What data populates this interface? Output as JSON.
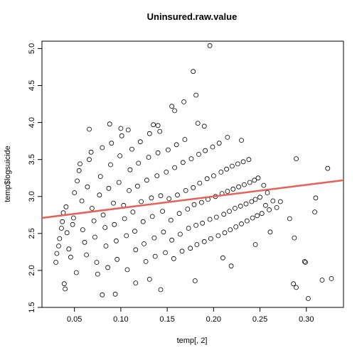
{
  "chart_data": {
    "type": "scatter",
    "title": "Uninsured.raw.value",
    "xlabel": "temp[, 2]",
    "ylabel": "temp$logsuicide",
    "xlim": [
      0.015,
      0.34
    ],
    "ylim": [
      1.5,
      5.1
    ],
    "x_ticks": [
      0.05,
      0.1,
      0.15,
      0.2,
      0.25,
      0.3
    ],
    "x_tick_labels": [
      "0.05",
      "0.10",
      "0.15",
      "0.20",
      "0.25",
      "0.30"
    ],
    "y_ticks": [
      1.5,
      2.0,
      2.5,
      3.0,
      3.5,
      4.0,
      4.5,
      5.0
    ],
    "y_tick_labels": [
      "1.5",
      "2.0",
      "2.5",
      "3.0",
      "3.5",
      "4.0",
      "4.5",
      "5.0"
    ],
    "grid": false,
    "point_style": "open-circle",
    "point_color": "#000000",
    "fit_line": {
      "color": "#e8605a",
      "x": [
        0.015,
        0.34
      ],
      "y": [
        2.71,
        3.22
      ]
    },
    "series": [
      {
        "points": [
          [
            0.196,
            5.04
          ],
          [
            0.178,
            4.69
          ],
          [
            0.181,
            4.37
          ],
          [
            0.168,
            4.28
          ],
          [
            0.155,
            4.22
          ],
          [
            0.158,
            4.16
          ],
          [
            0.14,
            3.96
          ],
          [
            0.135,
            3.97
          ],
          [
            0.183,
            3.99
          ],
          [
            0.19,
            3.95
          ],
          [
            0.066,
            3.91
          ],
          [
            0.088,
            3.98
          ],
          [
            0.1,
            3.92
          ],
          [
            0.108,
            3.9
          ],
          [
            0.215,
            3.8
          ],
          [
            0.23,
            3.76
          ],
          [
            0.289,
            3.51
          ],
          [
            0.323,
            3.38
          ],
          [
            0.31,
            2.98
          ],
          [
            0.309,
            2.79
          ],
          [
            0.282,
            2.7
          ],
          [
            0.287,
            2.44
          ],
          [
            0.261,
            2.52
          ],
          [
            0.298,
            2.12
          ],
          [
            0.299,
            2.11
          ],
          [
            0.286,
            1.82
          ],
          [
            0.289,
            1.77
          ],
          [
            0.302,
            1.62
          ],
          [
            0.317,
            1.87
          ],
          [
            0.327,
            1.89
          ],
          [
            0.245,
            2.35
          ],
          [
            0.219,
            2.06
          ],
          [
            0.21,
            2.17
          ],
          [
            0.18,
            1.86
          ],
          [
            0.143,
            1.74
          ],
          [
            0.131,
            1.88
          ],
          [
            0.116,
            1.83
          ],
          [
            0.094,
            1.68
          ],
          [
            0.08,
            1.67
          ],
          [
            0.039,
            1.82
          ],
          [
            0.04,
            1.75
          ],
          [
            0.052,
            1.97
          ],
          [
            0.03,
            2.11
          ],
          [
            0.031,
            2.23
          ],
          [
            0.033,
            2.33
          ],
          [
            0.034,
            2.43
          ],
          [
            0.036,
            2.57
          ],
          [
            0.037,
            2.66
          ],
          [
            0.038,
            2.78
          ],
          [
            0.041,
            2.86
          ],
          [
            0.042,
            2.51
          ],
          [
            0.044,
            2.29
          ],
          [
            0.046,
            2.18
          ],
          [
            0.048,
            2.62
          ],
          [
            0.049,
            2.71
          ],
          [
            0.05,
            3.05
          ],
          [
            0.053,
            3.21
          ],
          [
            0.055,
            3.35
          ],
          [
            0.056,
            3.44
          ],
          [
            0.058,
            2.94
          ],
          [
            0.059,
            2.55
          ],
          [
            0.061,
            2.38
          ],
          [
            0.063,
            2.21
          ],
          [
            0.064,
            3.13
          ],
          [
            0.066,
            3.5
          ],
          [
            0.068,
            3.6
          ],
          [
            0.069,
            2.84
          ],
          [
            0.071,
            2.67
          ],
          [
            0.072,
            2.45
          ],
          [
            0.074,
            2.11
          ],
          [
            0.075,
            1.95
          ],
          [
            0.077,
            3.02
          ],
          [
            0.078,
            3.27
          ],
          [
            0.08,
            3.66
          ],
          [
            0.081,
            2.75
          ],
          [
            0.083,
            2.58
          ],
          [
            0.084,
            2.33
          ],
          [
            0.086,
            2.04
          ],
          [
            0.087,
            3.11
          ],
          [
            0.089,
            3.43
          ],
          [
            0.09,
            3.72
          ],
          [
            0.092,
            2.91
          ],
          [
            0.093,
            2.62
          ],
          [
            0.095,
            2.4
          ],
          [
            0.096,
            2.15
          ],
          [
            0.098,
            3.19
          ],
          [
            0.099,
            3.55
          ],
          [
            0.101,
            3.82
          ],
          [
            0.103,
            2.88
          ],
          [
            0.104,
            2.7
          ],
          [
            0.106,
            2.47
          ],
          [
            0.107,
            2.01
          ],
          [
            0.109,
            3.08
          ],
          [
            0.11,
            3.36
          ],
          [
            0.112,
            3.64
          ],
          [
            0.113,
            2.79
          ],
          [
            0.115,
            2.53
          ],
          [
            0.116,
            2.28
          ],
          [
            0.118,
            3.14
          ],
          [
            0.119,
            3.45
          ],
          [
            0.121,
            3.74
          ],
          [
            0.122,
            2.93
          ],
          [
            0.124,
            2.66
          ],
          [
            0.125,
            2.36
          ],
          [
            0.127,
            2.12
          ],
          [
            0.128,
            3.22
          ],
          [
            0.13,
            3.53
          ],
          [
            0.131,
            3.85
          ],
          [
            0.133,
            2.98
          ],
          [
            0.134,
            2.73
          ],
          [
            0.136,
            2.44
          ],
          [
            0.137,
            2.19
          ],
          [
            0.139,
            3.28
          ],
          [
            0.14,
            3.59
          ],
          [
            0.142,
            3.88
          ],
          [
            0.143,
            3.01
          ],
          [
            0.145,
            2.8
          ],
          [
            0.146,
            2.52
          ],
          [
            0.148,
            2.24
          ],
          [
            0.149,
            3.33
          ],
          [
            0.151,
            3.63
          ],
          [
            0.152,
            2.97
          ],
          [
            0.154,
            2.68
          ],
          [
            0.155,
            2.41
          ],
          [
            0.157,
            2.16
          ],
          [
            0.158,
            3.39
          ],
          [
            0.16,
            3.7
          ],
          [
            0.161,
            3.02
          ],
          [
            0.163,
            2.77
          ],
          [
            0.164,
            2.49
          ],
          [
            0.166,
            2.26
          ],
          [
            0.167,
            3.46
          ],
          [
            0.169,
            3.77
          ],
          [
            0.17,
            3.08
          ],
          [
            0.172,
            2.83
          ],
          [
            0.173,
            2.57
          ],
          [
            0.175,
            2.3
          ],
          [
            0.176,
            3.51
          ],
          [
            0.178,
            3.12
          ],
          [
            0.179,
            2.89
          ],
          [
            0.181,
            2.61
          ],
          [
            0.182,
            2.35
          ],
          [
            0.184,
            3.57
          ],
          [
            0.185,
            3.18
          ],
          [
            0.187,
            2.92
          ],
          [
            0.188,
            2.64
          ],
          [
            0.19,
            2.39
          ],
          [
            0.191,
            3.62
          ],
          [
            0.193,
            3.24
          ],
          [
            0.194,
            2.96
          ],
          [
            0.196,
            2.69
          ],
          [
            0.197,
            2.43
          ],
          [
            0.199,
            3.67
          ],
          [
            0.2,
            3.28
          ],
          [
            0.202,
            3.0
          ],
          [
            0.203,
            2.72
          ],
          [
            0.205,
            2.47
          ],
          [
            0.206,
            3.72
          ],
          [
            0.208,
            3.33
          ],
          [
            0.209,
            3.04
          ],
          [
            0.211,
            2.76
          ],
          [
            0.212,
            2.51
          ],
          [
            0.214,
            3.37
          ],
          [
            0.215,
            3.07
          ],
          [
            0.217,
            2.8
          ],
          [
            0.218,
            2.55
          ],
          [
            0.22,
            3.41
          ],
          [
            0.221,
            3.1
          ],
          [
            0.223,
            2.84
          ],
          [
            0.224,
            2.59
          ],
          [
            0.226,
            3.44
          ],
          [
            0.227,
            3.13
          ],
          [
            0.229,
            2.87
          ],
          [
            0.23,
            2.63
          ],
          [
            0.232,
            3.47
          ],
          [
            0.233,
            3.16
          ],
          [
            0.235,
            2.9
          ],
          [
            0.236,
            2.67
          ],
          [
            0.238,
            3.5
          ],
          [
            0.239,
            3.19
          ],
          [
            0.241,
            2.93
          ],
          [
            0.242,
            2.71
          ],
          [
            0.244,
            3.22
          ],
          [
            0.245,
            2.96
          ],
          [
            0.247,
            2.74
          ],
          [
            0.248,
            3.25
          ],
          [
            0.25,
            2.99
          ],
          [
            0.252,
            2.77
          ],
          [
            0.254,
            3.15
          ],
          [
            0.256,
            2.88
          ],
          [
            0.258,
            3.05
          ],
          [
            0.26,
            2.82
          ],
          [
            0.264,
            2.94
          ],
          [
            0.268,
            2.85
          ],
          [
            0.272,
            2.93
          ]
        ]
      }
    ]
  }
}
